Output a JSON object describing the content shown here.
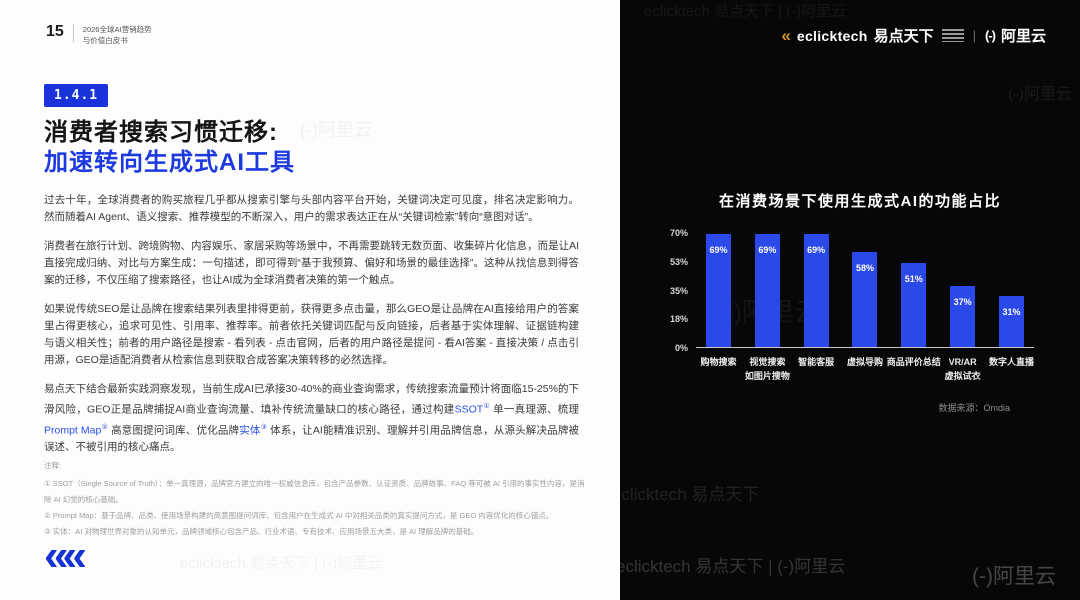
{
  "page": {
    "number": "15",
    "booklet_line1": "2026全球AI营销趋势",
    "booklet_line2": "与价值白皮书"
  },
  "section": {
    "badge": "1.4.1",
    "title_line1": "消费者搜索习惯迁移:",
    "title_line2": "加速转向生成式AI工具"
  },
  "paragraphs": {
    "p1": "过去十年，全球消费者的购买旅程几乎都从搜索引擎与头部内容平台开始，关键词决定可见度，排名决定影响力。然而随着AI Agent、语义搜索、推荐模型的不断深入，用户的需求表达正在从“关键词检索”转向“意图对话”。",
    "p2": "消费者在旅行计划、跨境购物、内容娱乐、家居采购等场景中，不再需要跳转无数页面、收集碎片化信息，而是让AI直接完成归纳、对比与方案生成：一句描述，即可得到“基于我预算、偏好和场景的最佳选择”。这种从找信息到得答案的迁移，不仅压缩了搜索路径，也让AI成为全球消费者决策的第一个触点。",
    "p3": "如果说传统SEO是让品牌在搜索结果列表里排得更前，获得更多点击量，那么GEO是让品牌在AI直接给用户的答案里占得更核心，追求可见性、引用率、推荐率。前者依托关键词匹配与反向链接，后者基于实体理解、证据链构建与语义相关性；前者的用户路径是搜索 - 看列表 - 点击官网，后者的用户路径是提问 - 看AI答案 - 直接决策 / 点击引用源，GEO是适配消费者从检索信息到获取合成答案决策转移的必然选择。",
    "p4_parts": {
      "a": "易点天下结合最新实践洞察发现，当前生成AI已承接30-40%的商业查询需求，传统搜索流量预计将面临15-25%的下滑风险，GEO正是品牌捕捉AI商业查询流量、填补传统流量缺口的核心路径，通过构建",
      "link1": "SSOT",
      "sup1": "①",
      "b": " 单一真理源、梳理",
      "link2": "Prompt Map",
      "sup2": "②",
      "c": " 高意图提问词库、优化品牌",
      "link3": "实体",
      "sup3": "③",
      "d": " 体系，让AI能精准识别、理解并引用品牌信息，从源头解决品牌被误述、不被引用的核心痛点。"
    }
  },
  "footnotes": {
    "label": "注释:",
    "items": [
      "① SSOT（Single Source of Truth）：单一真理源，品牌官方建立的唯一权威信息库，包含产品参数、认证资质、品牌故事、FAQ 等可被 AI 引用的事实性内容，是消除 AI 幻觉的核心基础。",
      "② Prompt Map：基于品牌、品类、使用场景构建的高意图提问词库，包含用户在生成式 AI 中对相关品类的真实提问方式，是 GEO 内容优化的核心锚点。",
      "③ 实体：AI 对物理世界对象的认知单元，品牌领域核心包含产品、行业术语、专有技术、应用场景五大类，是 AI 理解品牌的基础。"
    ]
  },
  "brand": {
    "eclicktech_mark": "«",
    "eclicktech_en": "eclicktech",
    "eclicktech_cn": "易点天下",
    "divider": "|",
    "aliyun_mark": "(-)",
    "aliyun_cn": "阿里云"
  },
  "logo": {
    "chevrons": "««"
  },
  "watermarks": {
    "brand_row": "eclicktech 易点天下    |    (-)阿里云",
    "aliyun": "(-)阿里云",
    "eclick": "eclicktech 易点天下"
  },
  "chart_data": {
    "type": "bar",
    "title": "在消费场景下使用生成式AI的功能占比",
    "categories": [
      "购物搜索",
      "视觉搜索\n如图片搜物",
      "智能客服",
      "虚拟导购",
      "商品评价总结",
      "VR/AR\n虚拟试衣",
      "数字人直播"
    ],
    "values": [
      69,
      69,
      69,
      58,
      51,
      37,
      31
    ],
    "value_labels": [
      "69%",
      "69%",
      "69%",
      "58%",
      "51%",
      "37%",
      "31%"
    ],
    "y_ticks": [
      "70%",
      "53%",
      "35%",
      "18%",
      "0%"
    ],
    "ylim": [
      0,
      70
    ],
    "xlabel": "",
    "ylabel": "",
    "grid": false,
    "legend": false,
    "bar_color": "#2a49e8",
    "source": "数据来源：Omdia"
  },
  "colors": {
    "accent_blue": "#1d39e0",
    "badge_blue": "#1733d9",
    "bar_blue": "#2a49e8",
    "panel_black": "#070707",
    "gold_mark": "#d19b26"
  }
}
